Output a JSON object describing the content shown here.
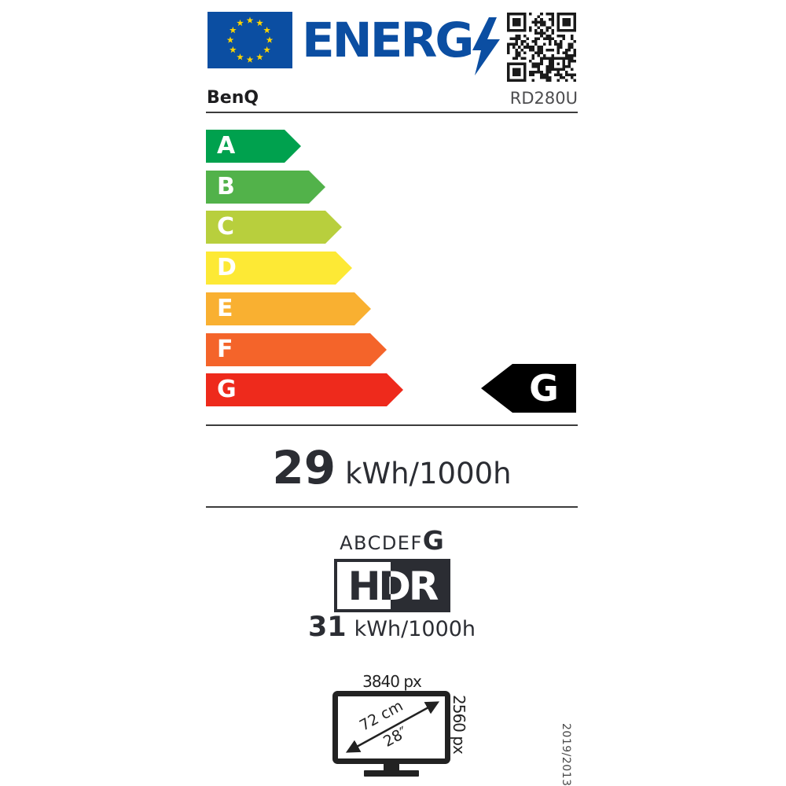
{
  "header": {
    "logo_text": "ENERG",
    "brand": "BenQ",
    "model": "RD280U"
  },
  "scale": {
    "classes": [
      {
        "label": "A",
        "color": "#00a14e"
      },
      {
        "label": "B",
        "color": "#52b24a"
      },
      {
        "label": "C",
        "color": "#b8cf3d"
      },
      {
        "label": "D",
        "color": "#fde935"
      },
      {
        "label": "E",
        "color": "#f9b031"
      },
      {
        "label": "F",
        "color": "#f4642a"
      },
      {
        "label": "G",
        "color": "#ee2a1c"
      }
    ],
    "selected_class": "G"
  },
  "energy_sdr": {
    "value": "29",
    "unit": "kWh/1000h"
  },
  "hdr": {
    "scale_letters": "ABCDEF",
    "selected_class": "G",
    "logo_text": "HDR",
    "value": "31",
    "unit": "kWh/1000h"
  },
  "screen": {
    "horizontal_resolution": "3840 px",
    "vertical_resolution": "2560 px",
    "diagonal_cm": "72 cm",
    "diagonal_inch": "28″"
  },
  "regulation": "2019/2013",
  "colors": {
    "eu_blue": "#0b4ea2",
    "star_yellow": "#ffd500",
    "text_dark": "#2b2d33",
    "selector_black": "#000000"
  }
}
